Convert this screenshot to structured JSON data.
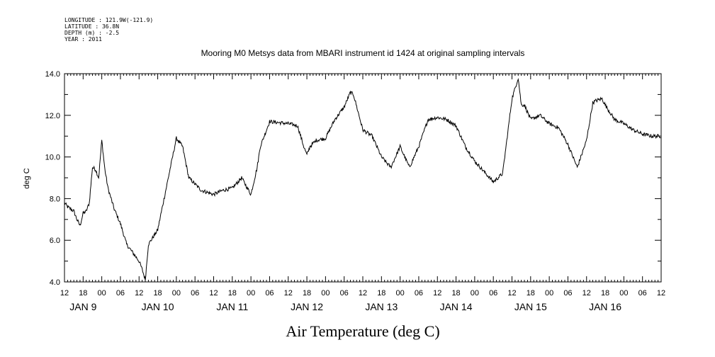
{
  "header": {
    "meta_lines": [
      "LONGITUDE : 121.9W(-121.9)",
      "LATITUDE : 36.8N",
      "DEPTH (m) : -2.5",
      "YEAR : 2011"
    ],
    "title": "Mooring M0 Metsys data from MBARI instrument id 1424 at original sampling intervals"
  },
  "bottom_label": "Air Temperature (deg C)",
  "chart_data": {
    "type": "line",
    "title": "Mooring M0 Metsys data from MBARI instrument id 1424 at original sampling intervals",
    "xlabel": "",
    "ylabel": "deg C",
    "ylim": [
      4.0,
      14.0
    ],
    "yticks": [
      "4.0",
      "6.0",
      "8.0",
      "10.0",
      "12.0",
      "14.0"
    ],
    "xlim_hours_from_jan9_00": [
      -12,
      180
    ],
    "xtick_labels": [
      "12",
      "18",
      "00",
      "06",
      "12",
      "18",
      "00",
      "06",
      "12",
      "18",
      "00",
      "06",
      "12",
      "18",
      "00",
      "06",
      "12",
      "18",
      "00",
      "06",
      "12",
      "18",
      "00",
      "06",
      "12",
      "18",
      "00",
      "06",
      "12",
      "18",
      "00",
      "06",
      "12"
    ],
    "day_labels": [
      "JAN  9",
      "JAN 10",
      "JAN 11",
      "JAN 12",
      "JAN 13",
      "JAN 14",
      "JAN 15",
      "JAN 16"
    ],
    "grid": false,
    "series": [
      {
        "x": [
          "2011-01-08 12:00",
          "2011-01-08 13:00",
          "2011-01-08 14:00",
          "2011-01-08 15:00",
          "2011-01-08 16:00",
          "2011-01-08 17:00",
          "2011-01-08 18:00",
          "2011-01-08 19:00",
          "2011-01-08 20:00",
          "2011-01-08 21:00",
          "2011-01-08 22:00",
          "2011-01-08 23:00",
          "2011-01-09 00:00",
          "2011-01-09 01:00",
          "2011-01-09 02:00",
          "2011-01-09 04:00",
          "2011-01-09 06:00",
          "2011-01-09 08:00",
          "2011-01-09 10:00",
          "2011-01-09 12:00",
          "2011-01-09 13:00",
          "2011-01-09 14:00",
          "2011-01-09 15:00",
          "2011-01-09 18:00",
          "2011-01-09 21:00",
          "2011-01-10 00:00",
          "2011-01-10 02:00",
          "2011-01-10 04:00",
          "2011-01-10 08:00",
          "2011-01-10 10:00",
          "2011-01-10 12:00",
          "2011-01-10 15:00",
          "2011-01-10 18:00",
          "2011-01-10 21:00",
          "2011-01-11 00:00",
          "2011-01-11 02:00",
          "2011-01-11 03:00",
          "2011-01-11 06:00",
          "2011-01-11 12:00",
          "2011-01-11 15:00",
          "2011-01-11 17:00",
          "2011-01-11 18:00",
          "2011-01-11 19:00",
          "2011-01-11 21:00",
          "2011-01-12 00:00",
          "2011-01-12 03:00",
          "2011-01-12 06:00",
          "2011-01-12 08:00",
          "2011-01-12 09:00",
          "2011-01-12 12:00",
          "2011-01-12 15:00",
          "2011-01-12 18:00",
          "2011-01-12 21:00",
          "2011-01-13 00:00",
          "2011-01-13 03:00",
          "2011-01-13 06:00",
          "2011-01-13 09:00",
          "2011-01-13 12:00",
          "2011-01-13 15:00",
          "2011-01-13 18:00",
          "2011-01-13 21:00",
          "2011-01-14 00:00",
          "2011-01-14 06:00",
          "2011-01-14 09:00",
          "2011-01-14 12:00",
          "2011-01-14 14:00",
          "2011-01-14 15:00",
          "2011-01-14 16:00",
          "2011-01-14 18:00",
          "2011-01-14 21:00",
          "2011-01-15 00:00",
          "2011-01-15 03:00",
          "2011-01-15 06:00",
          "2011-01-15 09:00",
          "2011-01-15 12:00",
          "2011-01-15 14:00",
          "2011-01-15 15:00",
          "2011-01-15 17:00",
          "2011-01-15 18:00",
          "2011-01-15 21:00",
          "2011-01-16 00:00",
          "2011-01-16 03:00",
          "2011-01-16 06:00",
          "2011-01-16 09:00",
          "2011-01-16 12:00"
        ],
        "y": [
          7.8,
          7.6,
          7.5,
          7.4,
          7.0,
          6.7,
          7.3,
          7.4,
          7.8,
          9.5,
          9.4,
          9.0,
          10.8,
          9.4,
          8.5,
          7.5,
          6.8,
          5.8,
          5.4,
          5.0,
          4.6,
          4.1,
          5.8,
          6.5,
          8.7,
          10.9,
          10.5,
          9.0,
          8.4,
          8.3,
          8.2,
          8.4,
          8.5,
          9.0,
          8.2,
          9.5,
          10.5,
          11.7,
          11.6,
          11.5,
          10.5,
          10.1,
          10.5,
          10.8,
          10.9,
          11.8,
          12.4,
          13.1,
          13.0,
          11.3,
          11.0,
          10.0,
          9.5,
          10.5,
          9.5,
          10.5,
          11.8,
          11.9,
          11.8,
          11.5,
          10.5,
          9.8,
          8.8,
          9.2,
          12.8,
          13.8,
          12.5,
          12.5,
          11.8,
          12.0,
          11.6,
          11.4,
          10.6,
          9.5,
          10.8,
          12.6,
          12.7,
          12.8,
          12.5,
          11.8,
          11.6,
          11.3,
          11.1,
          11.0,
          11.0
        ]
      }
    ]
  }
}
